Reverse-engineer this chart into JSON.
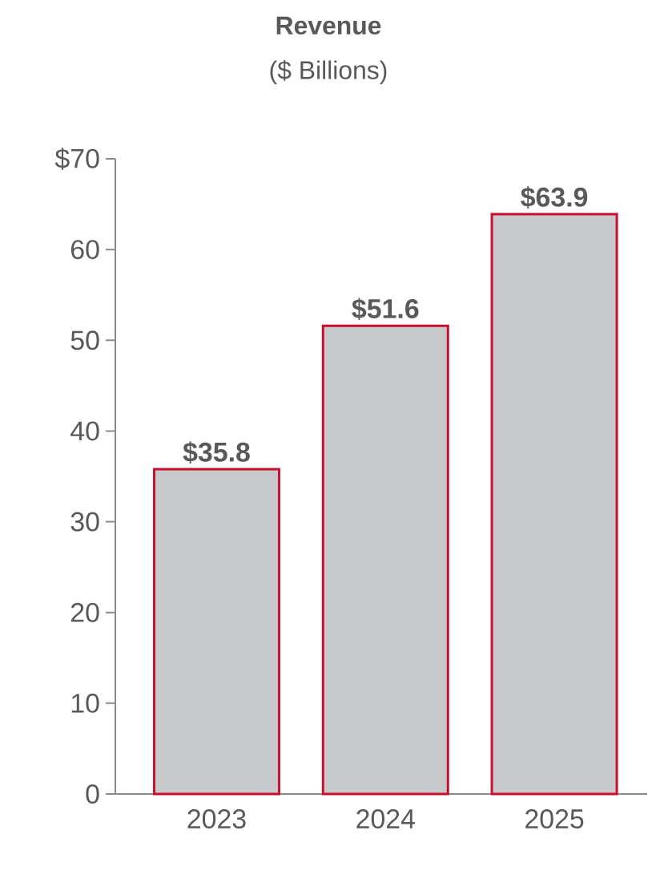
{
  "chart_data": {
    "type": "bar",
    "title": "Revenue",
    "subtitle": "($ Billions)",
    "categories": [
      "2023",
      "2024",
      "2025"
    ],
    "values": [
      35.8,
      51.6,
      63.9
    ],
    "value_labels": [
      "$35.8",
      "$51.6",
      "$63.9"
    ],
    "color": "#c8c9cb",
    "ylim": [
      0,
      70
    ],
    "yticks": [
      0,
      10,
      20,
      30,
      40,
      50,
      60,
      {
        "value": 70,
        "label": "$70"
      }
    ],
    "grid": false
  }
}
